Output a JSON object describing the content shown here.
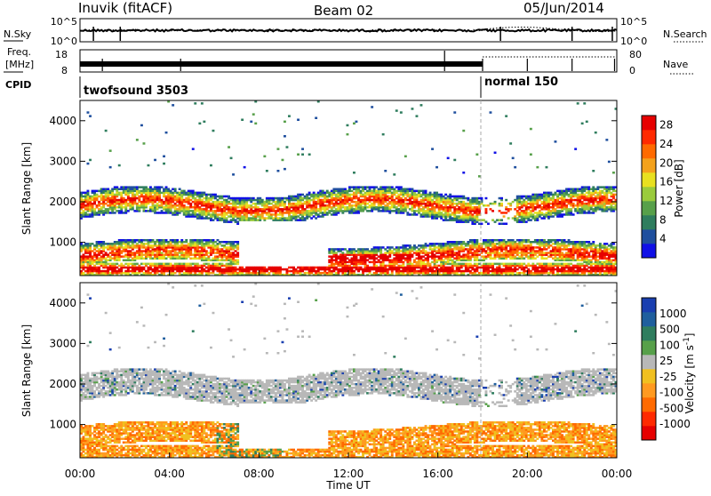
{
  "header": {
    "station": "Inuvik (fitACF)",
    "beam": "Beam 02",
    "date": "05/Jun/2014"
  },
  "top_panels": {
    "nsky_label": "N.Sky",
    "nsky_ticks": [
      "10^5",
      "10^0"
    ],
    "nsearch_label": "N.Search",
    "nsearch_ticks": [
      "10^5",
      "10^0"
    ],
    "freq_label_1": "Freq.",
    "freq_label_2": "[MHz]",
    "freq_ticks": [
      "18",
      "8"
    ],
    "nave_label": "Nave",
    "nave_ticks": [
      "80",
      "0"
    ],
    "cpid_label": "CPID",
    "cpid_segments": [
      "twofsound 3503",
      "normal 150"
    ]
  },
  "chart_data": [
    {
      "type": "heatmap",
      "title": "",
      "xlabel": "Time UT",
      "ylabel": "Slant Range [km]",
      "x_ticks": [
        "00:00",
        "04:00",
        "08:00",
        "12:00",
        "16:00",
        "20:00",
        "00:00"
      ],
      "y_ticks": [
        "1000",
        "2000",
        "3000",
        "4000"
      ],
      "xlim_hours": [
        0,
        24
      ],
      "ylim_km": [
        180,
        4500
      ],
      "colorbar_label": "Power [dB]",
      "colorbar_ticks": [
        "4",
        "8",
        "12",
        "16",
        "20",
        "24",
        "28"
      ],
      "colorbar_range": [
        0,
        30
      ],
      "colors": [
        "#1010e6",
        "#1f4f9e",
        "#2f7d5e",
        "#57a04a",
        "#9acb3c",
        "#e8e020",
        "#f4a21c",
        "#ff6a00",
        "#ff2a00",
        "#e60000"
      ]
    },
    {
      "type": "heatmap",
      "title": "",
      "xlabel": "Time UT",
      "ylabel": "Slant Range [km]",
      "x_ticks": [
        "00:00",
        "04:00",
        "08:00",
        "12:00",
        "16:00",
        "20:00",
        "00:00"
      ],
      "y_ticks": [
        "1000",
        "2000",
        "3000",
        "4000"
      ],
      "xlim_hours": [
        0,
        24
      ],
      "ylim_km": [
        180,
        4500
      ],
      "colorbar_label": "Velocity [m s^-1]",
      "colorbar_ticks": [
        "1000",
        "500",
        "100",
        "25",
        "-25",
        "-100",
        "-500",
        "-1000"
      ],
      "colors": [
        "#1a3fb0",
        "#1f5f9e",
        "#2f7d5e",
        "#57a04a",
        "#b8b8b8",
        "#f0c020",
        "#ff9a20",
        "#ff6a00",
        "#ff2a00",
        "#e60000"
      ]
    }
  ]
}
